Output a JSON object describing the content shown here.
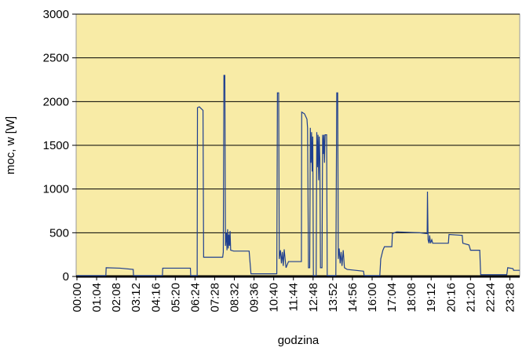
{
  "chart_data": {
    "type": "line",
    "x_label": "godzina",
    "y_label": "moc, w [W]",
    "xlim": [
      0,
      1440
    ],
    "ylim": [
      0,
      3000
    ],
    "yticks": [
      0,
      500,
      1000,
      1500,
      2000,
      2500,
      3000
    ],
    "xticks": [
      {
        "value": 0,
        "label": "00:00"
      },
      {
        "value": 64,
        "label": "01:04"
      },
      {
        "value": 128,
        "label": "02:08"
      },
      {
        "value": 192,
        "label": "03:12"
      },
      {
        "value": 256,
        "label": "04:16"
      },
      {
        "value": 320,
        "label": "05:20"
      },
      {
        "value": 384,
        "label": "06:24"
      },
      {
        "value": 448,
        "label": "07:28"
      },
      {
        "value": 512,
        "label": "08:32"
      },
      {
        "value": 576,
        "label": "09:36"
      },
      {
        "value": 640,
        "label": "10:40"
      },
      {
        "value": 704,
        "label": "11:44"
      },
      {
        "value": 768,
        "label": "12:48"
      },
      {
        "value": 832,
        "label": "13:52"
      },
      {
        "value": 896,
        "label": "14:56"
      },
      {
        "value": 960,
        "label": "16:00"
      },
      {
        "value": 1024,
        "label": "17:04"
      },
      {
        "value": 1088,
        "label": "18:08"
      },
      {
        "value": 1152,
        "label": "19:12"
      },
      {
        "value": 1216,
        "label": "20:16"
      },
      {
        "value": 1280,
        "label": "21:20"
      },
      {
        "value": 1344,
        "label": "22:24"
      },
      {
        "value": 1408,
        "label": "23:28"
      }
    ],
    "grid": true,
    "series": [
      {
        "color": "#1f3f8f",
        "x": [
          0,
          94,
          95,
          140,
          183,
          184,
          278,
          279,
          369,
          370,
          391,
          392,
          398,
          410,
          412,
          474,
          476,
          478,
          481,
          483,
          486,
          488,
          490,
          492,
          494,
          496,
          498,
          500,
          510,
          560,
          566,
          650,
          652,
          656,
          658,
          662,
          665,
          668,
          671,
          674,
          677,
          680,
          688,
          730,
          731,
          740,
          748,
          750,
          753,
          757,
          759,
          761,
          763,
          765,
          767,
          769,
          778,
          780,
          782,
          784,
          786,
          788,
          790,
          792,
          797,
          799,
          801,
          803,
          805,
          807,
          812,
          814,
          842,
          845,
          848,
          850,
          853,
          856,
          859,
          862,
          866,
          870,
          879,
          932,
          934,
          985,
          988,
          995,
          1000,
          1024,
          1026,
          1040,
          1113,
          1139,
          1140,
          1142,
          1145,
          1147,
          1150,
          1154,
          1157,
          1208,
          1210,
          1253,
          1255,
          1275,
          1280,
          1310,
          1313,
          1398,
          1401,
          1418,
          1420,
          1440
        ],
        "values": [
          10,
          10,
          100,
          95,
          80,
          10,
          10,
          95,
          95,
          10,
          10,
          1930,
          1940,
          1900,
          220,
          220,
          280,
          2300,
          2300,
          350,
          500,
          300,
          540,
          320,
          480,
          350,
          520,
          300,
          290,
          290,
          30,
          30,
          2100,
          2100,
          200,
          300,
          150,
          280,
          120,
          310,
          200,
          100,
          170,
          170,
          1880,
          1860,
          1800,
          1700,
          100,
          100,
          1700,
          1300,
          1650,
          1200,
          1600,
          10,
          10,
          1650,
          1250,
          1620,
          1100,
          1600,
          1350,
          100,
          100,
          1620,
          1400,
          1620,
          1300,
          1620,
          1620,
          10,
          10,
          2100,
          2100,
          200,
          320,
          150,
          280,
          120,
          300,
          100,
          80,
          60,
          10,
          10,
          200,
          300,
          340,
          340,
          490,
          510,
          500,
          490,
          970,
          420,
          380,
          470,
          380,
          420,
          380,
          380,
          480,
          470,
          380,
          360,
          300,
          300,
          20,
          20,
          100,
          90,
          70,
          70
        ]
      }
    ]
  }
}
